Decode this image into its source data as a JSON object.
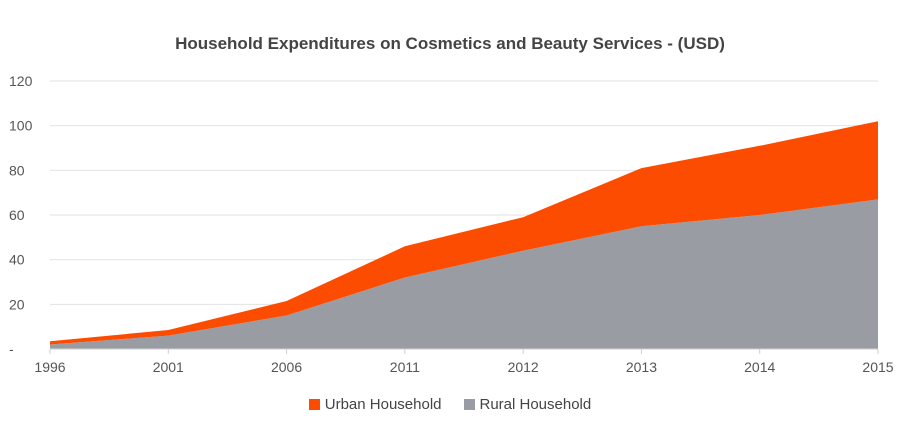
{
  "chart_data": {
    "type": "area",
    "stacked": true,
    "title": "Household Expenditures on Cosmetics and Beauty Services - (USD)",
    "xlabel": "",
    "ylabel": "",
    "categories": [
      "1996",
      "2001",
      "2006",
      "2011",
      "2012",
      "2013",
      "2014",
      "2015"
    ],
    "ylim": [
      0,
      120
    ],
    "yticks": [
      "-",
      "20",
      "40",
      "60",
      "80",
      "100",
      "120"
    ],
    "grid": true,
    "legend_position": "bottom",
    "series": [
      {
        "name": "Rural Household",
        "color": "#9a9ca3",
        "values": [
          2,
          6,
          15,
          32,
          44,
          55,
          60,
          67
        ]
      },
      {
        "name": "Urban Household",
        "color": "#fc4c02",
        "values": [
          1.5,
          2.5,
          6.5,
          14,
          15,
          26,
          31,
          35
        ]
      }
    ]
  }
}
